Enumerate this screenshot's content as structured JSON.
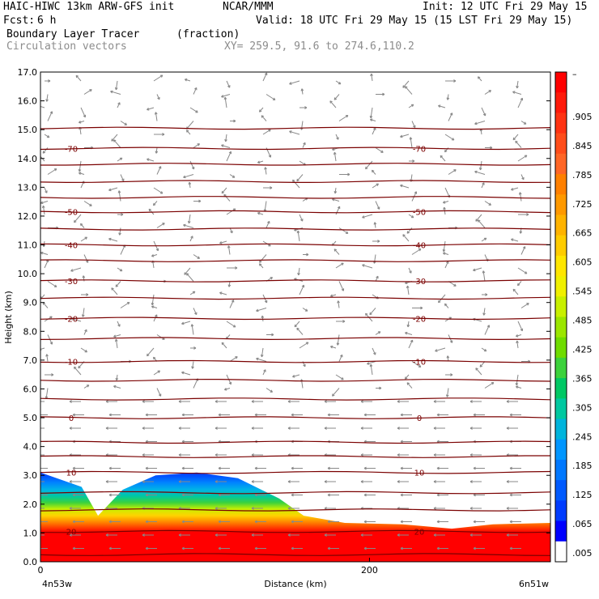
{
  "header": {
    "left_line1": "HAIC-HIWC 13km ARW-GFS init",
    "org": "NCAR/MMM",
    "init": "Init: 12 UTC Fri 29 May 15",
    "fcst_label": "Fcst:",
    "fcst_value": "6 h",
    "valid": "Valid: 18 UTC Fri 29 May 15 (15 LST Fri 29 May 15)",
    "field1_name": "Boundary Layer Tracer",
    "field1_units": "(fraction)",
    "field2_name": "Circulation vectors",
    "xy_text": "XY= 259.5, 91.6 to 274.6,110.2"
  },
  "chart_data": {
    "type": "heatmap",
    "ylabel": "Height (km)",
    "xlabel": "Distance (km)",
    "x_range": [
      0,
      310
    ],
    "ylim": [
      0,
      17
    ],
    "y_ticks": [
      "0.0",
      "1.0",
      "2.0",
      "3.0",
      "4.0",
      "5.0",
      "6.0",
      "7.0",
      "8.0",
      "9.0",
      "10.0",
      "11.0",
      "12.0",
      "13.0",
      "14.0",
      "15.0",
      "16.0",
      "17.0"
    ],
    "x_ticks": [
      {
        "value": 0,
        "label": "0"
      },
      {
        "value": 200,
        "label": "200"
      }
    ],
    "x_endpoints": {
      "left": "4n53w",
      "right": "6n51w"
    },
    "colorbar": {
      "top_label": "–",
      "labels": [
        ".905",
        ".845",
        ".785",
        ".725",
        ".665",
        ".605",
        ".545",
        ".485",
        ".425",
        ".365",
        ".305",
        ".245",
        ".185",
        ".125",
        ".065",
        ".005"
      ],
      "colors": [
        "#ff0000",
        "#ff1a0a",
        "#ff3312",
        "#ff4d1a",
        "#ff6626",
        "#ff8000",
        "#ff9900",
        "#ffb300",
        "#ffcc00",
        "#ffe600",
        "#f0f000",
        "#c8f000",
        "#9be600",
        "#6fdc00",
        "#3cd23c",
        "#00c864",
        "#00c8a0",
        "#00b4dc",
        "#0096ff",
        "#0078ff",
        "#005aff",
        "#003cff",
        "#0000ff",
        "#ffffff"
      ]
    },
    "isotherms": [
      {
        "label": "-70",
        "height": 14.35
      },
      {
        "label": "-50",
        "height": 12.15
      },
      {
        "label": "-40",
        "height": 11.0
      },
      {
        "label": "-30",
        "height": 9.75
      },
      {
        "label": "-20",
        "height": 8.45
      },
      {
        "label": "-10",
        "height": 6.95
      },
      {
        "label": "0",
        "height": 5.0
      },
      {
        "label": "10",
        "height": 3.1
      },
      {
        "label": "20",
        "height": 1.05
      }
    ],
    "other_levels": [
      15.05,
      13.8,
      13.2,
      12.65,
      11.55,
      10.45,
      9.15,
      7.75,
      6.3,
      5.65,
      4.15,
      3.65,
      2.4,
      1.8,
      0.25
    ],
    "tracer_top": [
      {
        "x": 0,
        "h": 3.1
      },
      {
        "x": 25,
        "h": 2.6
      },
      {
        "x": 35,
        "h": 1.6
      },
      {
        "x": 50,
        "h": 2.5
      },
      {
        "x": 70,
        "h": 3.0
      },
      {
        "x": 95,
        "h": 3.1
      },
      {
        "x": 120,
        "h": 2.9
      },
      {
        "x": 145,
        "h": 2.2
      },
      {
        "x": 160,
        "h": 1.6
      },
      {
        "x": 185,
        "h": 1.35
      },
      {
        "x": 220,
        "h": 1.3
      },
      {
        "x": 250,
        "h": 1.15
      },
      {
        "x": 275,
        "h": 1.3
      },
      {
        "x": 310,
        "h": 1.35
      }
    ]
  }
}
